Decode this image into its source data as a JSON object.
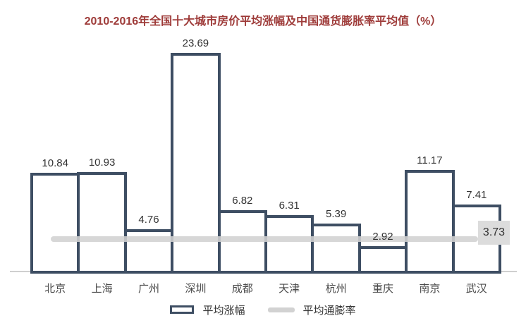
{
  "title": "2010-2016年全国十大城市房价平均涨幅及中国通货膨胀率平均值（%）",
  "colors": {
    "title_text": "#9e3b39",
    "bar_border": "#3e4e63",
    "bar_fill": "#ffffff",
    "inflation_line": "#d2d2d2",
    "inflation_label_bg": "#dcdcdc",
    "value_text": "#333333",
    "category_text": "#4a4a4a",
    "axis": "#cfcfcf"
  },
  "chart_data": {
    "type": "bar",
    "title": "2010-2016年全国十大城市房价平均涨幅及中国通货膨胀率平均值（%）",
    "categories": [
      "北京",
      "上海",
      "广州",
      "深圳",
      "成都",
      "天津",
      "杭州",
      "重庆",
      "南京",
      "武汉"
    ],
    "series": [
      {
        "name": "平均涨幅",
        "type": "bar",
        "values": [
          10.84,
          10.93,
          4.76,
          23.69,
          6.82,
          6.31,
          5.39,
          2.92,
          11.17,
          7.41
        ],
        "value_labels": [
          "10.84",
          "10.93",
          "4.76",
          "23.69",
          "6.82",
          "6.31",
          "5.39",
          "2.92",
          "11.17",
          "7.41"
        ]
      },
      {
        "name": "平均通膨率",
        "type": "line",
        "value": 3.73,
        "label": "3.73"
      }
    ],
    "xlabel": "",
    "ylabel": "",
    "ylim": [
      0,
      25
    ],
    "grid": false,
    "legend_position": "bottom",
    "value_labels": true
  },
  "legend": {
    "bar_label": "平均涨幅",
    "line_label": "平均通膨率"
  }
}
